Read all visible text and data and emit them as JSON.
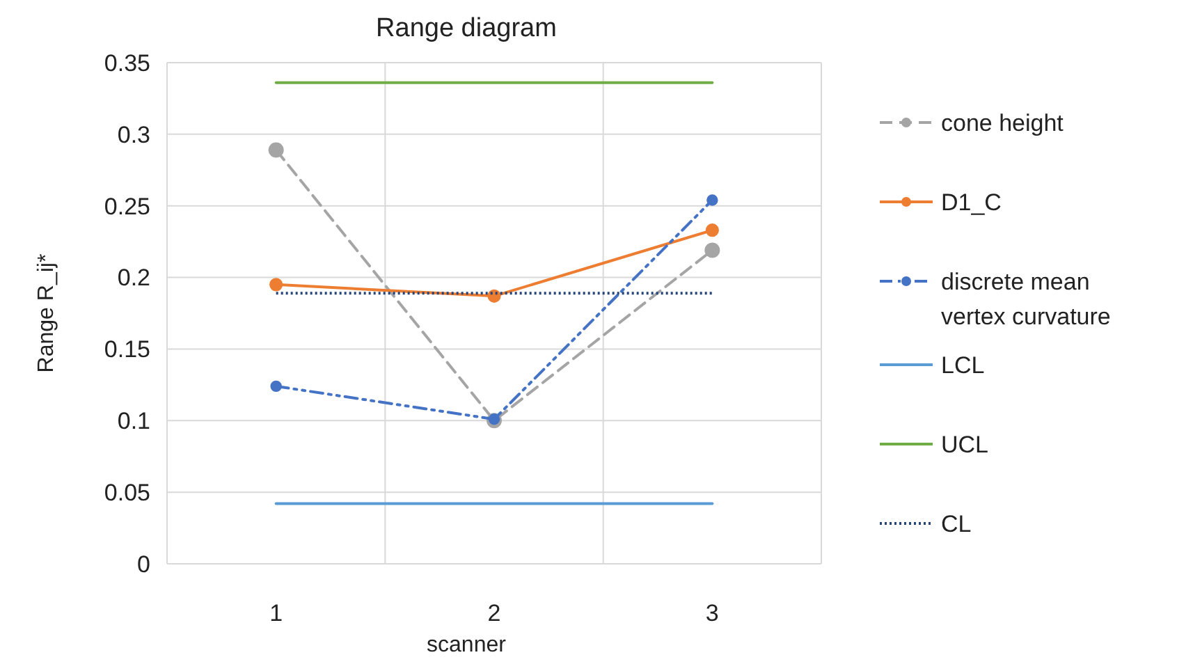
{
  "chart_data": {
    "type": "line",
    "title": "Range diagram",
    "xlabel": "scanner",
    "ylabel": "Range R_ij*",
    "categories": [
      "1",
      "2",
      "3"
    ],
    "series": [
      {
        "name": "cone height",
        "color": "#a5a5a5",
        "values": [
          0.289,
          0.1,
          0.219
        ],
        "marker": "circle",
        "line_style": "dashed"
      },
      {
        "name": "D1_C",
        "color": "#ed7d31",
        "values": [
          0.195,
          0.187,
          0.233
        ],
        "marker": "circle",
        "line_style": "solid"
      },
      {
        "name": "discrete mean vertex curvature",
        "color": "#4472c4",
        "values": [
          0.124,
          0.101,
          0.254
        ],
        "marker": "circle",
        "line_style": "dashdot"
      },
      {
        "name": "LCL",
        "color": "#5b9bd5",
        "values": [
          0.042,
          0.042,
          0.042
        ],
        "marker": "none",
        "line_style": "solid"
      },
      {
        "name": "UCL",
        "color": "#70ad47",
        "values": [
          0.336,
          0.336,
          0.336
        ],
        "marker": "none",
        "line_style": "solid"
      },
      {
        "name": "CL",
        "color": "#264478",
        "values": [
          0.189,
          0.189,
          0.189
        ],
        "marker": "none",
        "line_style": "dotted"
      }
    ],
    "ylim": [
      0,
      0.35
    ],
    "yticks": [
      0,
      0.05,
      0.1,
      0.15,
      0.2,
      0.25,
      0.3,
      0.35
    ],
    "grid": true,
    "legend": "right"
  }
}
